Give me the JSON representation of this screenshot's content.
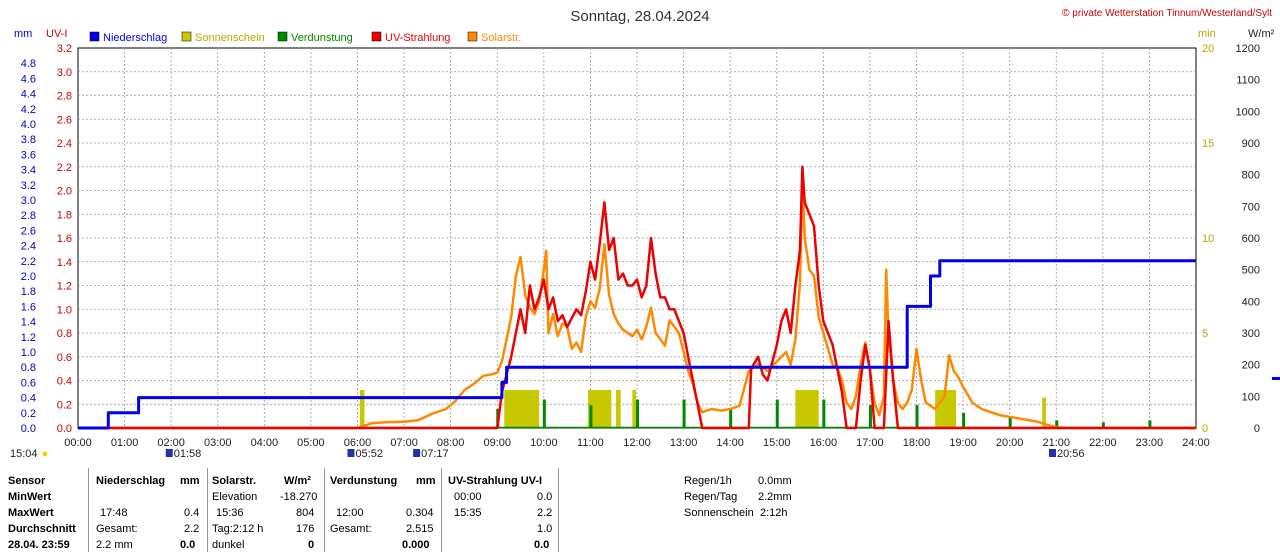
{
  "header": {
    "title": "Sonntag, 28.04.2024",
    "copyright": "© private Wetterstation Tinnum/Westerland/Sylt",
    "unit_mm": "mm",
    "unit_uvi": "UV-I",
    "unit_min": "min",
    "unit_wm2": "W/m²"
  },
  "legend": [
    {
      "label": "Niederschlag",
      "color": "#0000ee"
    },
    {
      "label": "Sonnenschein",
      "color": "#c8c800"
    },
    {
      "label": "Verdunstung",
      "color": "#008800"
    },
    {
      "label": "UV-Strahlung",
      "color": "#ee0000"
    },
    {
      "label": "Solarstr.",
      "color": "#ff8800"
    }
  ],
  "chart_data": {
    "type": "line",
    "x_range_hours": [
      0,
      24
    ],
    "x_tick_labels": [
      "00:00",
      "01:00",
      "02:00",
      "03:00",
      "04:00",
      "05:00",
      "06:00",
      "07:00",
      "08:00",
      "09:00",
      "10:00",
      "11:00",
      "12:00",
      "13:00",
      "14:00",
      "15:00",
      "16:00",
      "17:00",
      "18:00",
      "19:00",
      "20:00",
      "21:00",
      "22:00",
      "23:00",
      "24:00"
    ],
    "axes": {
      "mm": {
        "range": [
          0,
          5.0
        ],
        "ticks": [
          "0.0",
          "0.2",
          "0.4",
          "0.6",
          "0.8",
          "1.0",
          "1.2",
          "1.4",
          "1.6",
          "1.8",
          "2.0",
          "2.2",
          "2.4",
          "2.6",
          "2.8",
          "3.0",
          "3.2",
          "3.4",
          "3.6",
          "3.8",
          "4.0",
          "4.2",
          "4.4",
          "4.6",
          "4.8"
        ]
      },
      "uvi": {
        "range": [
          0,
          3.2
        ],
        "ticks": [
          "0.0",
          "0.2",
          "0.4",
          "0.6",
          "0.8",
          "1.0",
          "1.2",
          "1.4",
          "1.6",
          "1.8",
          "2.0",
          "2.2",
          "2.4",
          "2.6",
          "2.8",
          "3.0",
          "3.2"
        ]
      },
      "min": {
        "range": [
          0,
          20
        ],
        "ticks": [
          "0",
          "5",
          "10",
          "15",
          "20"
        ]
      },
      "wm2": {
        "range": [
          0,
          1200
        ],
        "ticks": [
          "0",
          "100",
          "200",
          "300",
          "400",
          "500",
          "600",
          "700",
          "800",
          "900",
          "1000",
          "1100",
          "1200"
        ]
      }
    },
    "grid": true,
    "series": [
      {
        "name": "Niederschlag",
        "color": "#0000ee",
        "axis": "mm",
        "step": true,
        "points": [
          [
            0,
            0
          ],
          [
            0.65,
            0
          ],
          [
            0.65,
            0.2
          ],
          [
            1.3,
            0.2
          ],
          [
            1.3,
            0.4
          ],
          [
            9.1,
            0.4
          ],
          [
            9.1,
            0.6
          ],
          [
            9.2,
            0.6
          ],
          [
            9.2,
            0.8
          ],
          [
            17.8,
            0.8
          ],
          [
            17.8,
            1.6
          ],
          [
            18.3,
            1.6
          ],
          [
            18.3,
            2.0
          ],
          [
            18.5,
            2.0
          ],
          [
            18.5,
            2.2
          ],
          [
            24,
            2.2
          ]
        ]
      },
      {
        "name": "UV-Strahlung",
        "color": "#ee0000",
        "axis": "uvi",
        "points": [
          [
            0,
            0
          ],
          [
            9.0,
            0
          ],
          [
            9.1,
            0.3
          ],
          [
            9.3,
            0.6
          ],
          [
            9.4,
            0.8
          ],
          [
            9.5,
            1.0
          ],
          [
            9.6,
            0.8
          ],
          [
            9.7,
            1.2
          ],
          [
            9.8,
            1.0
          ],
          [
            9.9,
            1.1
          ],
          [
            10.0,
            1.25
          ],
          [
            10.1,
            1.0
          ],
          [
            10.2,
            1.1
          ],
          [
            10.3,
            0.9
          ],
          [
            10.4,
            0.95
          ],
          [
            10.5,
            0.85
          ],
          [
            10.7,
            1.0
          ],
          [
            10.8,
            0.95
          ],
          [
            10.9,
            1.15
          ],
          [
            11.0,
            1.4
          ],
          [
            11.1,
            1.25
          ],
          [
            11.2,
            1.55
          ],
          [
            11.3,
            1.9
          ],
          [
            11.35,
            1.7
          ],
          [
            11.4,
            1.5
          ],
          [
            11.5,
            1.6
          ],
          [
            11.6,
            1.25
          ],
          [
            11.7,
            1.3
          ],
          [
            11.8,
            1.2
          ],
          [
            11.9,
            1.2
          ],
          [
            12.0,
            1.25
          ],
          [
            12.1,
            1.1
          ],
          [
            12.2,
            1.2
          ],
          [
            12.3,
            1.6
          ],
          [
            12.4,
            1.3
          ],
          [
            12.5,
            1.1
          ],
          [
            12.6,
            1.1
          ],
          [
            12.7,
            1.0
          ],
          [
            12.8,
            1.0
          ],
          [
            12.9,
            0.9
          ],
          [
            13.0,
            0.8
          ],
          [
            13.1,
            0.6
          ],
          [
            13.2,
            0.4
          ],
          [
            13.3,
            0.2
          ],
          [
            13.4,
            0
          ],
          [
            14.4,
            0
          ],
          [
            14.45,
            0.5
          ],
          [
            14.6,
            0.6
          ],
          [
            14.7,
            0.45
          ],
          [
            14.8,
            0.4
          ],
          [
            14.9,
            0.55
          ],
          [
            15.0,
            0.7
          ],
          [
            15.1,
            0.9
          ],
          [
            15.2,
            1.0
          ],
          [
            15.3,
            0.8
          ],
          [
            15.4,
            1.2
          ],
          [
            15.5,
            1.5
          ],
          [
            15.55,
            2.2
          ],
          [
            15.6,
            1.9
          ],
          [
            15.7,
            1.8
          ],
          [
            15.8,
            1.7
          ],
          [
            15.9,
            1.2
          ],
          [
            16.0,
            0.9
          ],
          [
            16.1,
            0.8
          ],
          [
            16.2,
            0.7
          ],
          [
            16.3,
            0.5
          ],
          [
            16.4,
            0.3
          ],
          [
            16.5,
            0
          ],
          [
            16.7,
            0
          ],
          [
            16.8,
            0.4
          ],
          [
            16.9,
            0.7
          ],
          [
            17.0,
            0.5
          ],
          [
            17.1,
            0
          ],
          [
            17.3,
            0
          ],
          [
            17.4,
            0.9
          ],
          [
            17.5,
            0.4
          ],
          [
            17.6,
            0
          ],
          [
            24,
            0
          ]
        ]
      },
      {
        "name": "Solarstr.",
        "color": "#ff8800",
        "axis": "wm2",
        "points": [
          [
            0,
            0
          ],
          [
            6.0,
            0
          ],
          [
            6.3,
            15
          ],
          [
            6.6,
            18
          ],
          [
            7.0,
            20
          ],
          [
            7.3,
            25
          ],
          [
            7.6,
            45
          ],
          [
            7.9,
            60
          ],
          [
            8.1,
            85
          ],
          [
            8.3,
            120
          ],
          [
            8.5,
            140
          ],
          [
            8.7,
            165
          ],
          [
            8.9,
            170
          ],
          [
            9.0,
            175
          ],
          [
            9.1,
            210
          ],
          [
            9.2,
            280
          ],
          [
            9.3,
            350
          ],
          [
            9.4,
            480
          ],
          [
            9.5,
            540
          ],
          [
            9.6,
            420
          ],
          [
            9.7,
            380
          ],
          [
            9.8,
            360
          ],
          [
            9.9,
            400
          ],
          [
            10.0,
            500
          ],
          [
            10.05,
            560
          ],
          [
            10.1,
            300
          ],
          [
            10.2,
            360
          ],
          [
            10.3,
            290
          ],
          [
            10.4,
            330
          ],
          [
            10.5,
            320
          ],
          [
            10.6,
            250
          ],
          [
            10.7,
            270
          ],
          [
            10.8,
            240
          ],
          [
            10.9,
            350
          ],
          [
            11.0,
            400
          ],
          [
            11.1,
            380
          ],
          [
            11.2,
            440
          ],
          [
            11.3,
            580
          ],
          [
            11.4,
            420
          ],
          [
            11.5,
            360
          ],
          [
            11.6,
            330
          ],
          [
            11.7,
            310
          ],
          [
            11.8,
            300
          ],
          [
            11.9,
            290
          ],
          [
            12.0,
            310
          ],
          [
            12.1,
            280
          ],
          [
            12.2,
            320
          ],
          [
            12.3,
            380
          ],
          [
            12.4,
            300
          ],
          [
            12.5,
            280
          ],
          [
            12.6,
            260
          ],
          [
            12.7,
            340
          ],
          [
            12.8,
            320
          ],
          [
            12.9,
            300
          ],
          [
            13.0,
            240
          ],
          [
            13.1,
            180
          ],
          [
            13.2,
            140
          ],
          [
            13.3,
            80
          ],
          [
            13.4,
            50
          ],
          [
            13.6,
            60
          ],
          [
            13.8,
            55
          ],
          [
            14.0,
            60
          ],
          [
            14.2,
            70
          ],
          [
            14.4,
            180
          ],
          [
            14.6,
            200
          ],
          [
            14.8,
            180
          ],
          [
            15.0,
            210
          ],
          [
            15.2,
            240
          ],
          [
            15.3,
            200
          ],
          [
            15.4,
            280
          ],
          [
            15.5,
            460
          ],
          [
            15.55,
            800
          ],
          [
            15.6,
            600
          ],
          [
            15.7,
            500
          ],
          [
            15.8,
            480
          ],
          [
            15.9,
            350
          ],
          [
            16.0,
            300
          ],
          [
            16.1,
            250
          ],
          [
            16.2,
            200
          ],
          [
            16.3,
            190
          ],
          [
            16.4,
            150
          ],
          [
            16.5,
            80
          ],
          [
            16.6,
            60
          ],
          [
            16.7,
            100
          ],
          [
            16.8,
            200
          ],
          [
            16.9,
            270
          ],
          [
            17.0,
            180
          ],
          [
            17.1,
            80
          ],
          [
            17.2,
            40
          ],
          [
            17.3,
            100
          ],
          [
            17.35,
            500
          ],
          [
            17.4,
            300
          ],
          [
            17.5,
            150
          ],
          [
            17.6,
            80
          ],
          [
            17.7,
            60
          ],
          [
            17.8,
            80
          ],
          [
            17.9,
            120
          ],
          [
            18.0,
            250
          ],
          [
            18.1,
            150
          ],
          [
            18.2,
            80
          ],
          [
            18.4,
            60
          ],
          [
            18.6,
            100
          ],
          [
            18.7,
            230
          ],
          [
            18.8,
            180
          ],
          [
            18.9,
            160
          ],
          [
            19.0,
            130
          ],
          [
            19.2,
            80
          ],
          [
            19.4,
            60
          ],
          [
            19.6,
            50
          ],
          [
            19.8,
            40
          ],
          [
            20.0,
            35
          ],
          [
            20.2,
            30
          ],
          [
            20.4,
            25
          ],
          [
            20.6,
            20
          ],
          [
            20.8,
            10
          ],
          [
            21.0,
            3
          ],
          [
            21.2,
            0
          ],
          [
            24,
            0
          ]
        ]
      }
    ],
    "sunshine_bars": [
      [
        6.05,
        6.15,
        2.0
      ],
      [
        9.15,
        9.9,
        2.0
      ],
      [
        10.95,
        11.45,
        2.0
      ],
      [
        11.55,
        11.65,
        2.0
      ],
      [
        11.9,
        11.98,
        2.0
      ],
      [
        15.4,
        15.9,
        2.0
      ],
      [
        18.4,
        18.85,
        2.0
      ],
      [
        20.7,
        20.78,
        1.6
      ]
    ],
    "evaporation_marks": [
      [
        9.0,
        1.0
      ],
      [
        10.0,
        1.5
      ],
      [
        11.0,
        1.2
      ],
      [
        12.0,
        1.5
      ],
      [
        13.0,
        1.5
      ],
      [
        14.0,
        1.0
      ],
      [
        15.0,
        1.5
      ],
      [
        16.0,
        1.5
      ],
      [
        17.0,
        1.2
      ],
      [
        18.0,
        1.2
      ],
      [
        19.0,
        0.8
      ],
      [
        20.0,
        0.6
      ],
      [
        21.0,
        0.4
      ],
      [
        22.0,
        0.3
      ],
      [
        23.0,
        0.4
      ]
    ],
    "sun_events": [
      {
        "label": "15:04",
        "hour": -1.0
      },
      {
        "label": "01:58",
        "hour": 1.97
      },
      {
        "label": "05:52",
        "hour": 5.87
      },
      {
        "label": "07:17",
        "hour": 7.28
      },
      {
        "label": "20:56",
        "hour": 20.93
      }
    ]
  },
  "stats": {
    "sensor": "Sensor",
    "minwert": "MinWert",
    "maxwert": "MaxWert",
    "durchschnitt": "Durchschnitt",
    "datetime": "28.04. 23:59",
    "niederschlag": {
      "header": "Niederschlag",
      "unit": "mm",
      "max_time": "17:48",
      "max_val": "0.4",
      "gesamt_label": "Gesamt:",
      "gesamt_val": "2.2",
      "last_a": "2.2 mm",
      "last_b": "0.0"
    },
    "solar": {
      "header": "Solarstr.",
      "unit": "W/m²",
      "min_label": "Elevation",
      "min_val": "-18.270",
      "max_time": "15:36",
      "max_val": "804",
      "avg_label": "Tag:2:12 h",
      "avg_val": "176",
      "last_label": "dunkel",
      "last_val": "0"
    },
    "verdunstung": {
      "header": "Verdunstung",
      "unit": "mm",
      "max_time": "12:00",
      "max_val": "0.304",
      "gesamt_label": "Gesamt:",
      "gesamt_val": "2.515",
      "last_val": "0.000"
    },
    "uv": {
      "header": "UV-Strahlung UV-I",
      "min_time": "00:00",
      "min_val": "0.0",
      "max_time": "15:35",
      "max_val": "2.2",
      "avg_val": "1.0",
      "last_val": "0.0"
    },
    "regen1h": {
      "label": "Regen/1h",
      "value": "0.0mm"
    },
    "regentag": {
      "label": "Regen/Tag",
      "value": "2.2mm"
    },
    "sonnenschein": {
      "label": "Sonnenschein",
      "value": "2:12h"
    }
  }
}
